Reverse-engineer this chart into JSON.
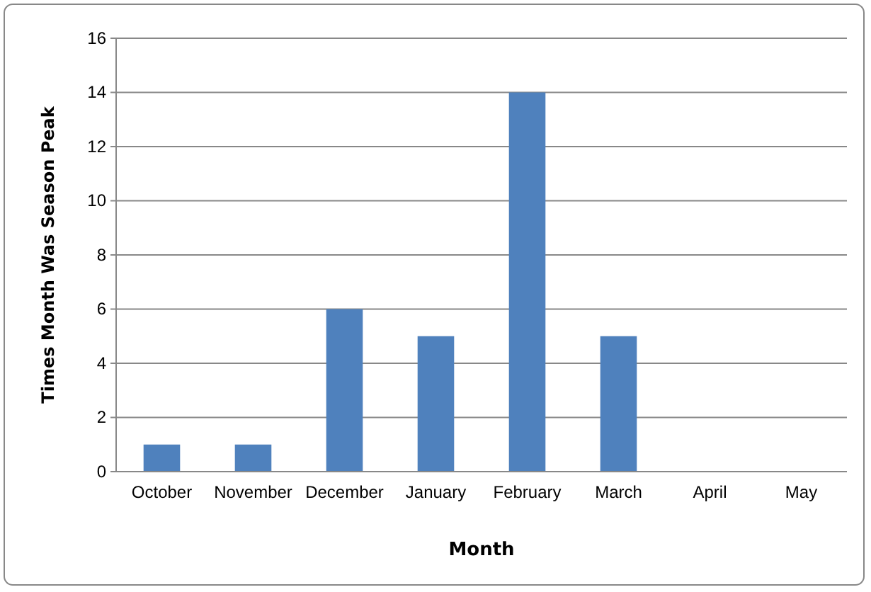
{
  "chart_data": {
    "type": "bar",
    "xlabel": "Month",
    "ylabel": "Times Month Was Season Peak",
    "categories": [
      "October",
      "November",
      "December",
      "January",
      "February",
      "March",
      "April",
      "May"
    ],
    "values": [
      1,
      1,
      6,
      5,
      14,
      5,
      0,
      0
    ],
    "color": "#4f81bd",
    "ylim": [
      0,
      16
    ],
    "yticks": [
      0,
      2,
      4,
      6,
      8,
      10,
      12,
      14,
      16
    ],
    "grid": "y"
  }
}
